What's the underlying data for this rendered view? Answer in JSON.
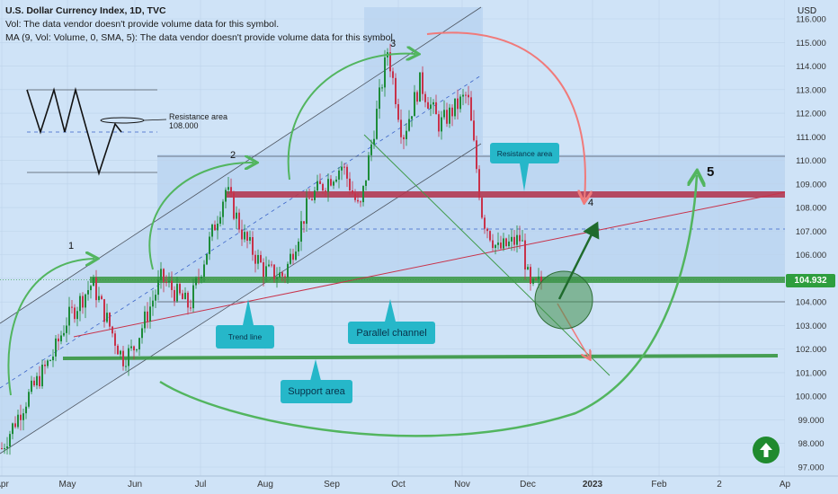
{
  "header": {
    "title": "U.S. Dollar Currency Index, 1D, TVC",
    "line2": "Vol: The data vendor doesn't provide volume data for this symbol.",
    "line3": "MA (9, Vol: Volume, 0, SMA, 5): The data vendor doesn't provide volume data for this symbol."
  },
  "price_label": "104.932",
  "currency_label": "USD",
  "annotations": {
    "resistance_text": "Resistance area",
    "resistance_value": "108.000",
    "wave1": "1",
    "wave2": "2",
    "wave3": "3",
    "wave4": "4",
    "wave5": "5",
    "callout_resistance": "Resistance area",
    "callout_trend": "Trend line",
    "callout_parallel": "Parallel channel",
    "callout_support": "Support area"
  },
  "colors": {
    "background": "#cfe3f7",
    "bull": "#1e8c3a",
    "bear": "#c8324a",
    "support_band": "#3f9a4a",
    "resistance_band": "#b23a52",
    "curve_arrow": "#52b55f",
    "red_arrow": "#f07a7a",
    "zone_fill": "#b8d3f0"
  },
  "chart_data": {
    "type": "candlestick",
    "x_tick_labels": [
      "Apr",
      "May",
      "Jun",
      "Jul",
      "Aug",
      "Sep",
      "Oct",
      "Nov",
      "Dec",
      "2023",
      "Feb",
      "2",
      "Ap"
    ],
    "y_tick_labels": [
      "97.000",
      "98.000",
      "99.000",
      "100.000",
      "101.000",
      "102.000",
      "103.000",
      "104.000",
      "105.000",
      "106.000",
      "107.000",
      "108.000",
      "109.000",
      "110.000",
      "111.000",
      "112.000",
      "113.000",
      "114.000",
      "115.000",
      "116.000"
    ],
    "ylim": [
      96.7,
      116.6
    ],
    "last_close": 104.932,
    "price_path": [
      [
        "2022-04-01",
        97.8
      ],
      [
        "2022-04-12",
        99.8
      ],
      [
        "2022-04-25",
        101.8
      ],
      [
        "2022-05-01",
        103.2
      ],
      [
        "2022-05-13",
        104.8
      ],
      [
        "2022-05-27",
        101.6
      ],
      [
        "2022-06-01",
        102.0
      ],
      [
        "2022-06-14",
        105.0
      ],
      [
        "2022-06-27",
        103.8
      ],
      [
        "2022-07-14",
        108.8
      ],
      [
        "2022-07-22",
        106.8
      ],
      [
        "2022-08-01",
        105.3
      ],
      [
        "2022-08-10",
        105.1
      ],
      [
        "2022-08-22",
        108.4
      ],
      [
        "2022-09-06",
        109.8
      ],
      [
        "2022-09-14",
        107.8
      ],
      [
        "2022-09-27",
        114.7
      ],
      [
        "2022-10-04",
        111.0
      ],
      [
        "2022-10-12",
        113.3
      ],
      [
        "2022-10-21",
        111.5
      ],
      [
        "2022-11-03",
        112.8
      ],
      [
        "2022-11-10",
        107.6
      ],
      [
        "2022-11-17",
        106.2
      ],
      [
        "2022-11-28",
        106.7
      ],
      [
        "2022-12-02",
        104.5
      ],
      [
        "2022-12-08",
        104.9
      ]
    ],
    "horizontal_levels": [
      {
        "label": "Resistance area",
        "value": 108.6
      },
      {
        "label": "Support area",
        "value": 104.85
      },
      {
        "value": 101.75
      },
      {
        "value": 107.15
      },
      {
        "value": 110.2
      },
      {
        "value": 104.1
      }
    ]
  }
}
